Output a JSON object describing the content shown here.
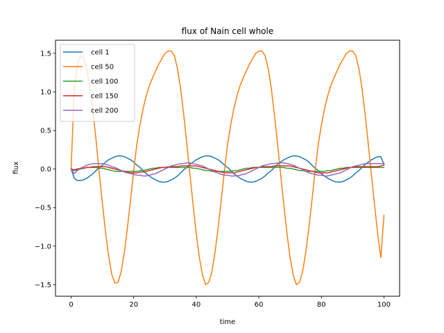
{
  "chart_data": {
    "type": "line",
    "title": "flux of Nain cell whole",
    "xlabel": "time",
    "ylabel": "flux",
    "xlim": [
      -5,
      105
    ],
    "ylim": [
      -1.65,
      1.67
    ],
    "xticks": [
      0,
      20,
      40,
      60,
      80,
      100
    ],
    "yticks": [
      -1.5,
      -1.0,
      -0.5,
      0.0,
      0.5,
      1.0,
      1.5
    ],
    "xtick_labels": [
      "0",
      "20",
      "40",
      "60",
      "80",
      "100"
    ],
    "ytick_labels": [
      "−1.5",
      "−1.0",
      "−0.5",
      "0.0",
      "0.5",
      "1.0",
      "1.5"
    ],
    "grid": false,
    "legend_position": "top-left",
    "x": [
      0,
      1,
      2,
      3,
      4,
      5,
      6,
      7,
      8,
      9,
      10,
      11,
      12,
      13,
      14,
      15,
      16,
      17,
      18,
      19,
      20,
      21,
      22,
      23,
      24,
      25,
      26,
      27,
      28,
      29,
      30,
      31,
      32,
      33,
      34,
      35,
      36,
      37,
      38,
      39,
      40,
      41,
      42,
      43,
      44,
      45,
      46,
      47,
      48,
      49,
      50,
      51,
      52,
      53,
      54,
      55,
      56,
      57,
      58,
      59,
      60,
      61,
      62,
      63,
      64,
      65,
      66,
      67,
      68,
      69,
      70,
      71,
      72,
      73,
      74,
      75,
      76,
      77,
      78,
      79,
      80,
      81,
      82,
      83,
      84,
      85,
      86,
      87,
      88,
      89,
      90,
      91,
      92,
      93,
      94,
      95,
      96,
      97,
      98,
      99,
      100
    ],
    "series": [
      {
        "name": "cell 1",
        "color": "#1f77b4",
        "values": [
          0.0,
          -0.12,
          -0.15,
          -0.15,
          -0.14,
          -0.12,
          -0.09,
          -0.06,
          -0.02,
          0.02,
          0.05,
          0.09,
          0.12,
          0.14,
          0.16,
          0.17,
          0.17,
          0.16,
          0.14,
          0.12,
          0.09,
          0.05,
          0.02,
          -0.02,
          -0.06,
          -0.09,
          -0.12,
          -0.14,
          -0.16,
          -0.17,
          -0.17,
          -0.16,
          -0.14,
          -0.12,
          -0.09,
          -0.05,
          -0.01,
          0.02,
          0.06,
          0.09,
          0.12,
          0.14,
          0.16,
          0.17,
          0.17,
          0.16,
          0.14,
          0.12,
          0.09,
          0.05,
          0.02,
          -0.02,
          -0.06,
          -0.09,
          -0.12,
          -0.14,
          -0.16,
          -0.17,
          -0.17,
          -0.16,
          -0.14,
          -0.12,
          -0.09,
          -0.05,
          -0.02,
          0.02,
          0.06,
          0.09,
          0.12,
          0.14,
          0.16,
          0.17,
          0.17,
          0.16,
          0.14,
          0.12,
          0.09,
          0.05,
          0.01,
          -0.02,
          -0.06,
          -0.09,
          -0.12,
          -0.14,
          -0.16,
          -0.17,
          -0.17,
          -0.16,
          -0.14,
          -0.12,
          -0.09,
          -0.05,
          -0.02,
          0.02,
          0.06,
          0.09,
          0.12,
          0.14,
          0.16,
          0.16,
          0.06
        ]
      },
      {
        "name": "cell 50",
        "color": "#ff7f0e",
        "values": [
          0.0,
          1.05,
          1.35,
          1.47,
          1.44,
          1.3,
          1.06,
          0.74,
          0.36,
          -0.05,
          -0.45,
          -0.82,
          -1.13,
          -1.37,
          -1.48,
          -1.47,
          -1.33,
          -1.08,
          -0.76,
          -0.4,
          -0.02,
          0.32,
          0.57,
          0.78,
          0.95,
          1.08,
          1.18,
          1.27,
          1.36,
          1.43,
          1.5,
          1.53,
          1.53,
          1.47,
          1.3,
          1.04,
          0.7,
          0.32,
          -0.08,
          -0.47,
          -0.84,
          -1.15,
          -1.38,
          -1.5,
          -1.47,
          -1.33,
          -1.08,
          -0.76,
          -0.4,
          -0.02,
          0.32,
          0.57,
          0.78,
          0.95,
          1.08,
          1.18,
          1.27,
          1.36,
          1.43,
          1.5,
          1.53,
          1.53,
          1.47,
          1.3,
          1.04,
          0.7,
          0.32,
          -0.08,
          -0.47,
          -0.84,
          -1.15,
          -1.38,
          -1.5,
          -1.47,
          -1.33,
          -1.08,
          -0.76,
          -0.4,
          -0.02,
          0.32,
          0.57,
          0.78,
          0.95,
          1.08,
          1.18,
          1.27,
          1.36,
          1.43,
          1.5,
          1.53,
          1.53,
          1.47,
          1.3,
          1.04,
          0.7,
          0.32,
          -0.08,
          -0.47,
          -0.84,
          -1.15,
          -0.6
        ]
      },
      {
        "name": "cell 100",
        "color": "#2ca02c",
        "values": [
          0.0,
          -0.02,
          -0.01,
          0.0,
          0.01,
          0.02,
          0.02,
          0.02,
          0.02,
          0.01,
          0.01,
          0.0,
          -0.01,
          -0.02,
          -0.03,
          -0.03,
          -0.03,
          -0.03,
          -0.03,
          -0.03,
          -0.03,
          -0.03,
          -0.02,
          -0.02,
          -0.01,
          0.0,
          0.01,
          0.01,
          0.02,
          0.02,
          0.02,
          0.02,
          0.02,
          0.02,
          0.02,
          0.02,
          0.02,
          0.02,
          0.02,
          0.01,
          0.01,
          0.0,
          -0.01,
          -0.02,
          -0.02,
          -0.03,
          -0.03,
          -0.03,
          -0.03,
          -0.03,
          -0.03,
          -0.03,
          -0.02,
          -0.02,
          -0.01,
          0.0,
          0.01,
          0.01,
          0.02,
          0.02,
          0.02,
          0.02,
          0.02,
          0.02,
          0.02,
          0.02,
          0.02,
          0.02,
          0.02,
          0.01,
          0.01,
          0.0,
          -0.01,
          -0.02,
          -0.02,
          -0.03,
          -0.03,
          -0.03,
          -0.03,
          -0.03,
          -0.03,
          -0.03,
          -0.02,
          -0.02,
          -0.01,
          0.0,
          0.01,
          0.01,
          0.02,
          0.02,
          0.02,
          0.02,
          0.02,
          0.02,
          0.02,
          0.02,
          0.02,
          0.02,
          0.02,
          0.02,
          0.02
        ]
      },
      {
        "name": "cell 150",
        "color": "#d62728",
        "values": [
          0.0,
          -0.01,
          0.0,
          0.01,
          0.01,
          0.02,
          0.02,
          0.03,
          0.03,
          0.03,
          0.03,
          0.03,
          0.02,
          0.01,
          0.0,
          -0.01,
          -0.02,
          -0.03,
          -0.04,
          -0.05,
          -0.05,
          -0.05,
          -0.04,
          -0.04,
          -0.03,
          -0.02,
          -0.01,
          0.0,
          0.01,
          0.02,
          0.02,
          0.03,
          0.03,
          0.03,
          0.03,
          0.04,
          0.04,
          0.04,
          0.04,
          0.04,
          0.04,
          0.03,
          0.02,
          0.01,
          0.0,
          -0.01,
          -0.02,
          -0.03,
          -0.04,
          -0.05,
          -0.05,
          -0.05,
          -0.05,
          -0.04,
          -0.03,
          -0.02,
          -0.01,
          0.0,
          0.01,
          0.02,
          0.02,
          0.03,
          0.03,
          0.03,
          0.03,
          0.04,
          0.04,
          0.04,
          0.04,
          0.04,
          0.04,
          0.03,
          0.02,
          0.01,
          0.0,
          -0.01,
          -0.02,
          -0.03,
          -0.04,
          -0.05,
          -0.05,
          -0.05,
          -0.05,
          -0.04,
          -0.03,
          -0.02,
          -0.01,
          0.0,
          0.01,
          0.02,
          0.02,
          0.03,
          0.03,
          0.03,
          0.03,
          0.03,
          0.03,
          0.03,
          0.03,
          0.04,
          0.05
        ]
      },
      {
        "name": "cell 200",
        "color": "#9467bd",
        "values": [
          0.0,
          -0.06,
          -0.02,
          0.01,
          0.03,
          0.05,
          0.06,
          0.07,
          0.07,
          0.07,
          0.07,
          0.06,
          0.05,
          0.03,
          0.02,
          0.0,
          -0.02,
          -0.04,
          -0.05,
          -0.06,
          -0.07,
          -0.08,
          -0.08,
          -0.09,
          -0.09,
          -0.08,
          -0.07,
          -0.06,
          -0.04,
          -0.02,
          0.0,
          0.02,
          0.04,
          0.05,
          0.06,
          0.07,
          0.07,
          0.08,
          0.08,
          0.07,
          0.06,
          0.05,
          0.04,
          0.02,
          0.0,
          -0.02,
          -0.04,
          -0.05,
          -0.07,
          -0.08,
          -0.08,
          -0.09,
          -0.09,
          -0.09,
          -0.08,
          -0.07,
          -0.06,
          -0.04,
          -0.02,
          0.0,
          0.02,
          0.04,
          0.05,
          0.06,
          0.07,
          0.07,
          0.08,
          0.08,
          0.08,
          0.07,
          0.06,
          0.05,
          0.03,
          0.01,
          -0.01,
          -0.03,
          -0.05,
          -0.06,
          -0.07,
          -0.08,
          -0.08,
          -0.09,
          -0.09,
          -0.08,
          -0.07,
          -0.06,
          -0.05,
          -0.03,
          -0.01,
          0.01,
          0.03,
          0.04,
          0.05,
          0.06,
          0.07,
          0.07,
          0.07,
          0.07,
          0.07,
          0.07,
          0.07
        ]
      }
    ]
  }
}
